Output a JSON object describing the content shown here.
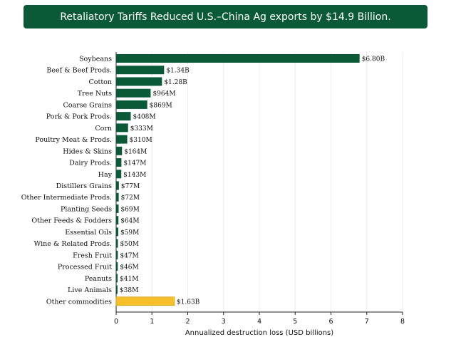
{
  "chart_data": {
    "type": "bar",
    "orientation": "horizontal",
    "title": "Retaliatory Tariffs Reduced U.S.–China Ag exports by $14.9 Billion.",
    "xlabel": "Annualized destruction loss (USD billions)",
    "ylabel": "",
    "xlim": [
      0,
      8
    ],
    "xticks": [
      "0",
      "1",
      "2",
      "3",
      "4",
      "5",
      "6",
      "7",
      "8"
    ],
    "grid": "vertical",
    "categories": [
      "Soybeans",
      "Beef & Beef Prods.",
      "Cotton",
      "Tree Nuts",
      "Coarse Grains",
      "Pork & Pork Prods.",
      "Corn",
      "Poultry Meat & Prods.",
      "Hides & Skins",
      "Dairy Prods.",
      "Hay",
      "Distillers Grains",
      "Other Intermediate Prods.",
      "Planting Seeds",
      "Other Feeds & Fodders",
      "Essential Oils",
      "Wine & Related Prods.",
      "Fresh Fruit",
      "Processed Fruit",
      "Peanuts",
      "Live Animals",
      "Other commodities"
    ],
    "values": [
      6.8,
      1.34,
      1.28,
      0.964,
      0.869,
      0.408,
      0.333,
      0.31,
      0.164,
      0.147,
      0.143,
      0.077,
      0.072,
      0.069,
      0.064,
      0.059,
      0.05,
      0.047,
      0.046,
      0.041,
      0.038,
      1.63
    ],
    "value_labels": [
      "$6.80B",
      "$1.34B",
      "$1.28B",
      "$964M",
      "$869M",
      "$408M",
      "$333M",
      "$310M",
      "$164M",
      "$147M",
      "$143M",
      "$77M",
      "$72M",
      "$69M",
      "$64M",
      "$59M",
      "$50M",
      "$47M",
      "$46M",
      "$41M",
      "$38M",
      "$1.63B"
    ],
    "colors": {
      "bar": "#0b5a37",
      "highlight": "#f5c02c",
      "banner": "#0b5a37"
    },
    "highlight_categories": [
      "Other commodities"
    ]
  }
}
